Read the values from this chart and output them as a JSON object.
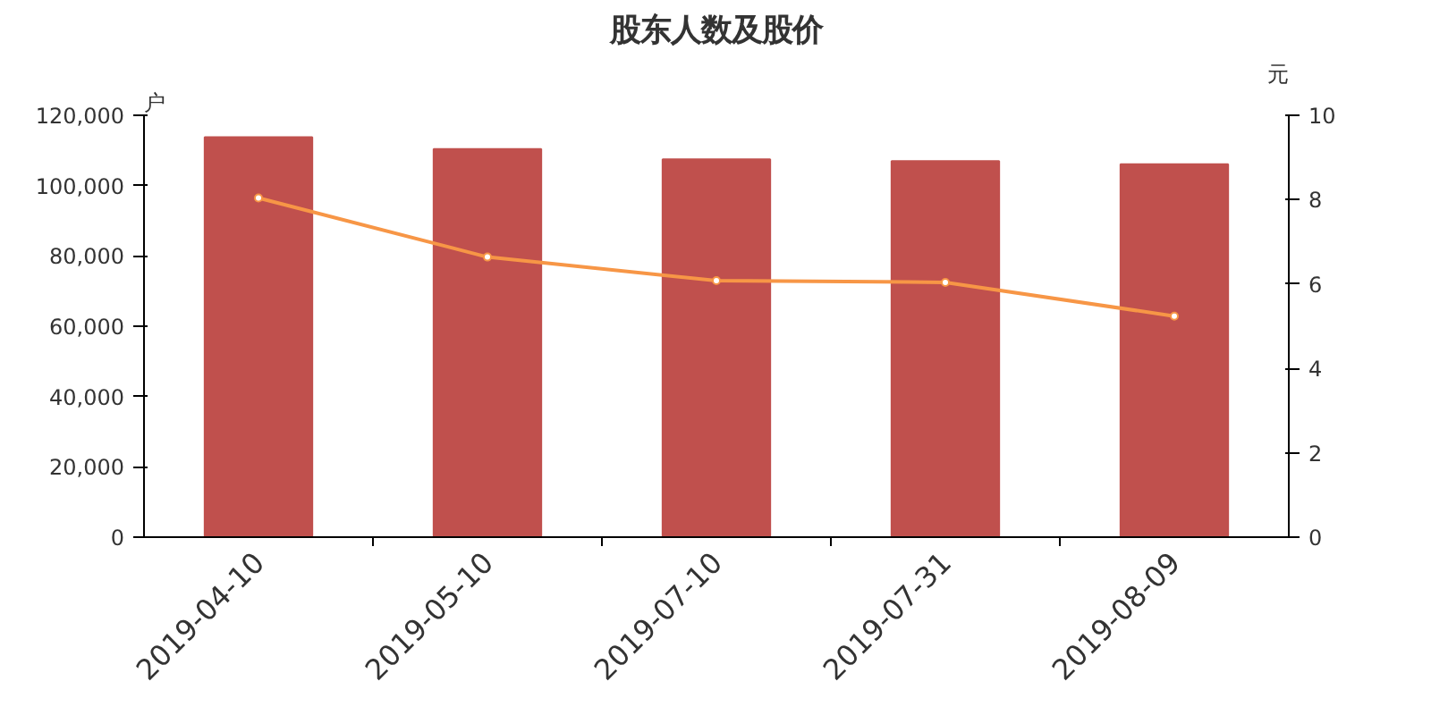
{
  "chart_data": {
    "type": "bar",
    "title": "股东人数及股价",
    "ylabel": "户",
    "y2label": "元",
    "categories": [
      "2019-04-10",
      "2019-05-10",
      "2019-07-10",
      "2019-07-31",
      "2019-08-09"
    ],
    "series": [
      {
        "color": "#c0504d",
        "values": [
          113800,
          110400,
          107500,
          107000,
          106100
        ]
      },
      {
        "type": "line",
        "axis": "y2",
        "color": "#f79646",
        "marker": "circle",
        "values": [
          8.04,
          6.64,
          6.08,
          6.04,
          5.24
        ]
      }
    ],
    "ylim": [
      0,
      120000
    ],
    "yticks": [
      0,
      {
        "value": 20000,
        "label": "20,000"
      },
      {
        "value": 40000,
        "label": "40,000"
      },
      {
        "value": 60000,
        "label": "60,000"
      },
      {
        "value": 80000,
        "label": "80,000"
      },
      {
        "value": 100000,
        "label": "100,000"
      },
      {
        "value": 120000,
        "label": "120,000"
      }
    ],
    "y2lim": [
      0,
      10
    ],
    "y2ticks": [
      0,
      2,
      4,
      6,
      8,
      10
    ],
    "grid": false
  }
}
